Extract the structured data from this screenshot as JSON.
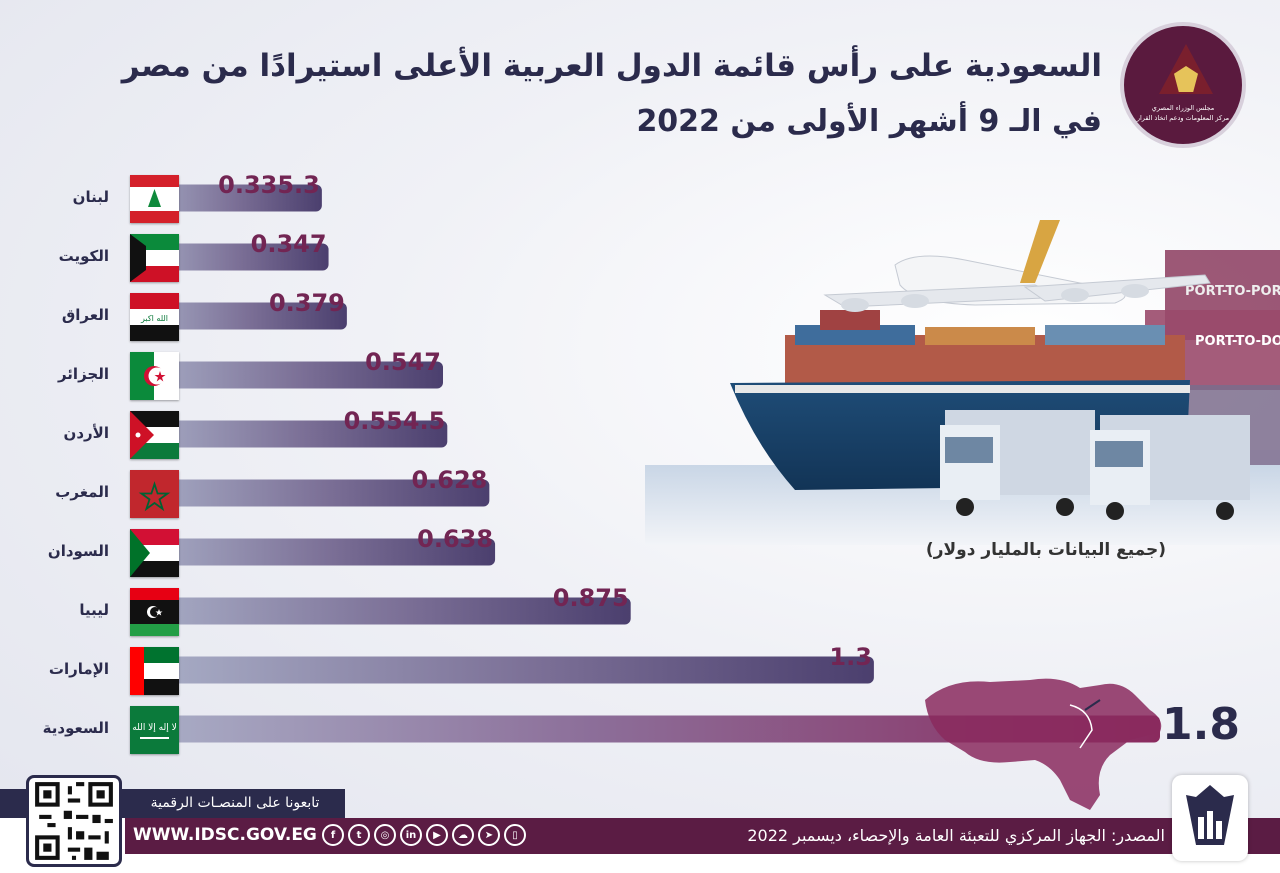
{
  "title_line1": "السعودية على رأس قائمة الدول العربية الأعلى استيرادًا من مصر",
  "title_line2": "في الـ 9 أشهر الأولى من 2022",
  "logo": {
    "line1": "مجلس الوزراء المصري",
    "line2": "مركز المعلومات ودعم اتخاذ القرار"
  },
  "note": "(جميع البيانات بالمليار دولار)",
  "chart_data": {
    "type": "bar",
    "orientation": "horizontal",
    "unit": "مليار دولار",
    "categories": [
      "لبنان",
      "الكويت",
      "العراق",
      "الجزائر",
      "الأردن",
      "المغرب",
      "السودان",
      "ليبيا",
      "الإمارات",
      "السعودية"
    ],
    "values": [
      0.3353,
      0.347,
      0.379,
      0.547,
      0.5545,
      0.628,
      0.638,
      0.875,
      1.3,
      1.8
    ],
    "value_labels": [
      "0.335.3",
      "0.347",
      "0.379",
      "0.547",
      "0.554.5",
      "0.628",
      "0.638",
      "0.875",
      "1.3",
      "1.8"
    ],
    "flags": [
      "lebanon-flag",
      "kuwait-flag",
      "iraq-flag",
      "algeria-flag",
      "jordan-flag",
      "morocco-flag",
      "sudan-flag",
      "libya-flag",
      "uae-flag",
      "saudi-flag"
    ],
    "colors": {
      "bar_light": "#aab0c8",
      "bar_dark": "#4b3f6e",
      "bar_highlight": "#8a2a5e",
      "value_text": "#722553",
      "big_value_text": "#2b2b4c"
    }
  },
  "footer": {
    "follow": "تابعونا على المنصـات الرقمية",
    "website": "WWW.IDSC.GOV.EG",
    "source": "المصدر: الجهاز المركزي للتعبئة العامة والإحصاء، ديسمبر 2022",
    "social_icons": [
      "facebook-icon",
      "twitter-icon",
      "instagram-icon",
      "linkedin-icon",
      "youtube-icon",
      "soundcloud-icon",
      "telegram-icon",
      "mobile-icon"
    ]
  },
  "scene_text": {
    "port_to_port": "PORT-TO-PORT",
    "port_to_door": "PORT-TO-DOOR"
  }
}
